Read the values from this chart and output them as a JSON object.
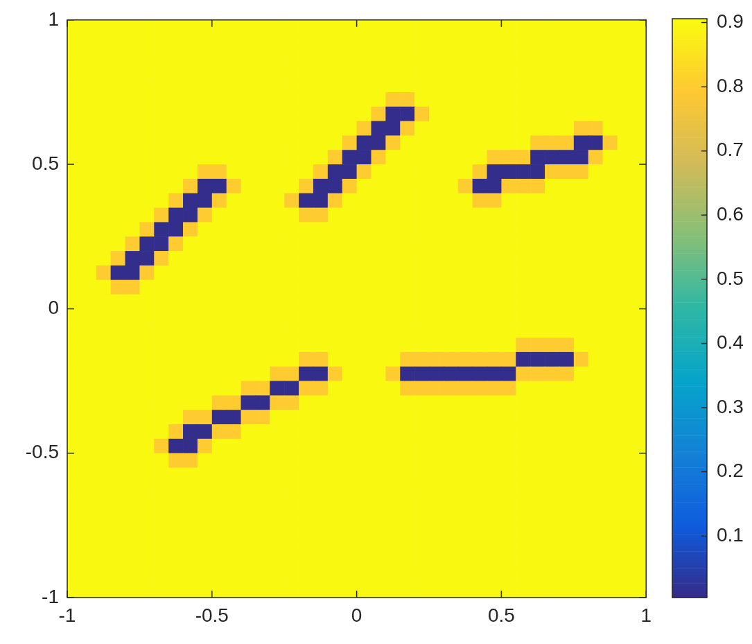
{
  "chart_data": {
    "type": "heatmap",
    "xlim": [
      -1,
      1
    ],
    "ylim": [
      -1,
      1
    ],
    "xticks": [
      -1,
      -0.5,
      0,
      0.5,
      1
    ],
    "yticks": [
      -1,
      -0.5,
      0,
      0.5,
      1
    ],
    "clim": [
      0.004,
      0.906
    ],
    "cticks": [
      0.1,
      0.2,
      0.3,
      0.4,
      0.5,
      0.6,
      0.7,
      0.8,
      0.9
    ],
    "grid": false,
    "cells": [
      [
        0.9,
        0.9,
        0.9,
        0.9,
        0.9,
        0.9,
        0.9,
        0.9,
        0.9,
        0.9,
        0.9,
        0.9,
        0.9,
        0.9,
        0.9,
        0.9,
        0.9,
        0.9,
        0.9,
        0.9,
        0.9,
        0.9,
        0.9,
        0.9,
        0.9,
        0.9,
        0.9,
        0.9,
        0.9,
        0.9,
        0.9,
        0.9,
        0.9,
        0.9,
        0.9,
        0.9,
        0.9,
        0.9,
        0.9,
        0.9
      ],
      [
        0.9,
        0.9,
        0.9,
        0.9,
        0.9,
        0.9,
        0.9,
        0.9,
        0.9,
        0.9,
        0.9,
        0.9,
        0.9,
        0.9,
        0.9,
        0.9,
        0.9,
        0.9,
        0.9,
        0.9,
        0.9,
        0.9,
        0.9,
        0.9,
        0.9,
        0.9,
        0.9,
        0.9,
        0.9,
        0.9,
        0.9,
        0.9,
        0.9,
        0.9,
        0.9,
        0.9,
        0.9,
        0.9,
        0.9,
        0.9
      ],
      [
        0.9,
        0.9,
        0.9,
        0.9,
        0.9,
        0.9,
        0.9,
        0.9,
        0.9,
        0.9,
        0.9,
        0.9,
        0.9,
        0.9,
        0.9,
        0.9,
        0.9,
        0.9,
        0.9,
        0.9,
        0.9,
        0.9,
        0.9,
        0.9,
        0.9,
        0.9,
        0.9,
        0.9,
        0.9,
        0.9,
        0.9,
        0.9,
        0.9,
        0.9,
        0.9,
        0.9,
        0.9,
        0.9,
        0.9,
        0.9
      ],
      [
        0.9,
        0.9,
        0.9,
        0.9,
        0.9,
        0.9,
        0.9,
        0.9,
        0.9,
        0.9,
        0.9,
        0.9,
        0.9,
        0.9,
        0.9,
        0.9,
        0.9,
        0.9,
        0.9,
        0.9,
        0.9,
        0.9,
        0.9,
        0.9,
        0.9,
        0.9,
        0.9,
        0.9,
        0.9,
        0.9,
        0.9,
        0.9,
        0.9,
        0.9,
        0.9,
        0.9,
        0.9,
        0.9,
        0.9,
        0.9
      ],
      [
        0.9,
        0.9,
        0.9,
        0.9,
        0.9,
        0.9,
        0.9,
        0.9,
        0.9,
        0.9,
        0.9,
        0.9,
        0.9,
        0.9,
        0.9,
        0.9,
        0.9,
        0.9,
        0.9,
        0.9,
        0.9,
        0.9,
        0.9,
        0.9,
        0.9,
        0.9,
        0.9,
        0.9,
        0.9,
        0.9,
        0.9,
        0.9,
        0.9,
        0.9,
        0.9,
        0.9,
        0.9,
        0.9,
        0.9,
        0.9
      ],
      [
        0.9,
        0.9,
        0.9,
        0.9,
        0.9,
        0.9,
        0.9,
        0.9,
        0.9,
        0.9,
        0.9,
        0.9,
        0.9,
        0.9,
        0.9,
        0.9,
        0.9,
        0.9,
        0.9,
        0.9,
        0.9,
        0.9,
        0.8,
        0.8,
        0.9,
        0.9,
        0.9,
        0.9,
        0.9,
        0.9,
        0.9,
        0.9,
        0.9,
        0.9,
        0.9,
        0.9,
        0.9,
        0.9,
        0.9,
        0.9
      ],
      [
        0.9,
        0.9,
        0.9,
        0.9,
        0.9,
        0.9,
        0.9,
        0.9,
        0.9,
        0.9,
        0.9,
        0.9,
        0.9,
        0.9,
        0.9,
        0.9,
        0.9,
        0.9,
        0.9,
        0.9,
        0.9,
        0.8,
        0.01,
        0.01,
        0.8,
        0.9,
        0.9,
        0.9,
        0.9,
        0.9,
        0.9,
        0.9,
        0.9,
        0.9,
        0.9,
        0.9,
        0.9,
        0.9,
        0.9,
        0.9
      ],
      [
        0.9,
        0.9,
        0.9,
        0.9,
        0.9,
        0.9,
        0.9,
        0.9,
        0.9,
        0.9,
        0.9,
        0.9,
        0.9,
        0.9,
        0.9,
        0.9,
        0.9,
        0.9,
        0.9,
        0.9,
        0.8,
        0.01,
        0.01,
        0.8,
        0.9,
        0.9,
        0.9,
        0.9,
        0.9,
        0.9,
        0.9,
        0.9,
        0.9,
        0.9,
        0.9,
        0.8,
        0.8,
        0.9,
        0.9,
        0.9
      ],
      [
        0.9,
        0.9,
        0.9,
        0.9,
        0.9,
        0.9,
        0.9,
        0.9,
        0.9,
        0.9,
        0.9,
        0.9,
        0.9,
        0.9,
        0.9,
        0.9,
        0.9,
        0.9,
        0.9,
        0.8,
        0.01,
        0.01,
        0.8,
        0.9,
        0.9,
        0.9,
        0.9,
        0.9,
        0.9,
        0.9,
        0.9,
        0.9,
        0.8,
        0.8,
        0.8,
        0.01,
        0.01,
        0.8,
        0.9,
        0.9
      ],
      [
        0.9,
        0.9,
        0.9,
        0.9,
        0.9,
        0.9,
        0.9,
        0.9,
        0.9,
        0.9,
        0.9,
        0.9,
        0.9,
        0.9,
        0.9,
        0.9,
        0.9,
        0.9,
        0.8,
        0.01,
        0.01,
        0.8,
        0.9,
        0.9,
        0.9,
        0.9,
        0.9,
        0.9,
        0.9,
        0.8,
        0.8,
        0.8,
        0.01,
        0.01,
        0.01,
        0.01,
        0.8,
        0.9,
        0.9,
        0.9
      ],
      [
        0.9,
        0.9,
        0.9,
        0.9,
        0.9,
        0.9,
        0.9,
        0.9,
        0.9,
        0.8,
        0.8,
        0.9,
        0.9,
        0.9,
        0.9,
        0.9,
        0.9,
        0.8,
        0.01,
        0.01,
        0.8,
        0.9,
        0.9,
        0.9,
        0.9,
        0.9,
        0.9,
        0.9,
        0.8,
        0.01,
        0.01,
        0.01,
        0.01,
        0.8,
        0.8,
        0.8,
        0.9,
        0.9,
        0.9,
        0.9
      ],
      [
        0.9,
        0.9,
        0.9,
        0.9,
        0.9,
        0.9,
        0.9,
        0.9,
        0.8,
        0.01,
        0.01,
        0.8,
        0.9,
        0.9,
        0.9,
        0.9,
        0.8,
        0.01,
        0.01,
        0.8,
        0.9,
        0.9,
        0.9,
        0.9,
        0.9,
        0.9,
        0.9,
        0.8,
        0.01,
        0.01,
        0.8,
        0.8,
        0.8,
        0.9,
        0.9,
        0.9,
        0.9,
        0.9,
        0.9,
        0.9
      ],
      [
        0.9,
        0.9,
        0.9,
        0.9,
        0.9,
        0.9,
        0.9,
        0.8,
        0.01,
        0.01,
        0.8,
        0.9,
        0.9,
        0.9,
        0.9,
        0.8,
        0.01,
        0.01,
        0.8,
        0.9,
        0.9,
        0.9,
        0.9,
        0.9,
        0.9,
        0.9,
        0.9,
        0.9,
        0.8,
        0.8,
        0.9,
        0.9,
        0.9,
        0.9,
        0.9,
        0.9,
        0.9,
        0.9,
        0.9,
        0.9
      ],
      [
        0.9,
        0.9,
        0.9,
        0.9,
        0.9,
        0.9,
        0.8,
        0.01,
        0.01,
        0.8,
        0.9,
        0.9,
        0.9,
        0.9,
        0.9,
        0.9,
        0.8,
        0.8,
        0.9,
        0.9,
        0.9,
        0.9,
        0.9,
        0.9,
        0.9,
        0.9,
        0.9,
        0.9,
        0.9,
        0.9,
        0.9,
        0.9,
        0.9,
        0.9,
        0.9,
        0.9,
        0.9,
        0.9,
        0.9,
        0.9
      ],
      [
        0.9,
        0.9,
        0.9,
        0.9,
        0.9,
        0.8,
        0.01,
        0.01,
        0.8,
        0.9,
        0.9,
        0.9,
        0.9,
        0.9,
        0.9,
        0.9,
        0.9,
        0.9,
        0.9,
        0.9,
        0.9,
        0.9,
        0.9,
        0.9,
        0.9,
        0.9,
        0.9,
        0.9,
        0.9,
        0.9,
        0.9,
        0.9,
        0.9,
        0.9,
        0.9,
        0.9,
        0.9,
        0.9,
        0.9,
        0.9
      ],
      [
        0.9,
        0.9,
        0.9,
        0.9,
        0.8,
        0.01,
        0.01,
        0.8,
        0.9,
        0.9,
        0.9,
        0.9,
        0.9,
        0.9,
        0.9,
        0.9,
        0.9,
        0.9,
        0.9,
        0.9,
        0.9,
        0.9,
        0.9,
        0.9,
        0.9,
        0.9,
        0.9,
        0.9,
        0.9,
        0.9,
        0.9,
        0.9,
        0.9,
        0.9,
        0.9,
        0.9,
        0.9,
        0.9,
        0.9,
        0.9
      ],
      [
        0.9,
        0.9,
        0.9,
        0.8,
        0.01,
        0.01,
        0.8,
        0.9,
        0.9,
        0.9,
        0.9,
        0.9,
        0.9,
        0.9,
        0.9,
        0.9,
        0.9,
        0.9,
        0.9,
        0.9,
        0.9,
        0.9,
        0.9,
        0.9,
        0.9,
        0.9,
        0.9,
        0.9,
        0.9,
        0.9,
        0.9,
        0.9,
        0.9,
        0.9,
        0.9,
        0.9,
        0.9,
        0.9,
        0.9,
        0.9
      ],
      [
        0.9,
        0.9,
        0.8,
        0.01,
        0.01,
        0.8,
        0.9,
        0.9,
        0.9,
        0.9,
        0.9,
        0.9,
        0.9,
        0.9,
        0.9,
        0.9,
        0.9,
        0.9,
        0.9,
        0.9,
        0.9,
        0.9,
        0.9,
        0.9,
        0.9,
        0.9,
        0.9,
        0.9,
        0.9,
        0.9,
        0.9,
        0.9,
        0.9,
        0.9,
        0.9,
        0.9,
        0.9,
        0.9,
        0.9,
        0.9
      ],
      [
        0.9,
        0.9,
        0.9,
        0.8,
        0.8,
        0.9,
        0.9,
        0.9,
        0.9,
        0.9,
        0.9,
        0.9,
        0.9,
        0.9,
        0.9,
        0.9,
        0.9,
        0.9,
        0.9,
        0.9,
        0.9,
        0.9,
        0.9,
        0.9,
        0.9,
        0.9,
        0.9,
        0.9,
        0.9,
        0.9,
        0.9,
        0.9,
        0.9,
        0.9,
        0.9,
        0.9,
        0.9,
        0.9,
        0.9,
        0.9
      ],
      [
        0.9,
        0.9,
        0.9,
        0.9,
        0.9,
        0.9,
        0.9,
        0.9,
        0.9,
        0.9,
        0.9,
        0.9,
        0.9,
        0.9,
        0.9,
        0.9,
        0.9,
        0.9,
        0.9,
        0.9,
        0.9,
        0.9,
        0.9,
        0.9,
        0.9,
        0.9,
        0.9,
        0.9,
        0.9,
        0.9,
        0.9,
        0.9,
        0.9,
        0.9,
        0.9,
        0.9,
        0.9,
        0.9,
        0.9,
        0.9
      ],
      [
        0.9,
        0.9,
        0.9,
        0.9,
        0.9,
        0.9,
        0.9,
        0.9,
        0.9,
        0.9,
        0.9,
        0.9,
        0.9,
        0.9,
        0.9,
        0.9,
        0.9,
        0.9,
        0.9,
        0.9,
        0.9,
        0.9,
        0.9,
        0.9,
        0.9,
        0.9,
        0.9,
        0.9,
        0.9,
        0.9,
        0.9,
        0.9,
        0.9,
        0.9,
        0.9,
        0.9,
        0.9,
        0.9,
        0.9,
        0.9
      ],
      [
        0.9,
        0.9,
        0.9,
        0.9,
        0.9,
        0.9,
        0.9,
        0.9,
        0.9,
        0.9,
        0.9,
        0.9,
        0.9,
        0.9,
        0.9,
        0.9,
        0.9,
        0.9,
        0.9,
        0.9,
        0.9,
        0.9,
        0.9,
        0.9,
        0.9,
        0.9,
        0.9,
        0.9,
        0.9,
        0.9,
        0.9,
        0.9,
        0.9,
        0.9,
        0.9,
        0.9,
        0.9,
        0.9,
        0.9,
        0.9
      ],
      [
        0.9,
        0.9,
        0.9,
        0.9,
        0.9,
        0.9,
        0.9,
        0.9,
        0.9,
        0.9,
        0.9,
        0.9,
        0.9,
        0.9,
        0.9,
        0.9,
        0.9,
        0.9,
        0.9,
        0.9,
        0.9,
        0.9,
        0.9,
        0.9,
        0.9,
        0.9,
        0.9,
        0.9,
        0.9,
        0.9,
        0.9,
        0.8,
        0.8,
        0.8,
        0.8,
        0.9,
        0.9,
        0.9,
        0.9,
        0.9
      ],
      [
        0.9,
        0.9,
        0.9,
        0.9,
        0.9,
        0.9,
        0.9,
        0.9,
        0.9,
        0.9,
        0.9,
        0.9,
        0.9,
        0.9,
        0.9,
        0.9,
        0.8,
        0.8,
        0.9,
        0.9,
        0.9,
        0.9,
        0.9,
        0.8,
        0.8,
        0.8,
        0.8,
        0.8,
        0.8,
        0.8,
        0.8,
        0.01,
        0.01,
        0.01,
        0.01,
        0.8,
        0.9,
        0.9,
        0.9,
        0.9
      ],
      [
        0.9,
        0.9,
        0.9,
        0.9,
        0.9,
        0.9,
        0.9,
        0.9,
        0.9,
        0.9,
        0.9,
        0.9,
        0.9,
        0.9,
        0.8,
        0.8,
        0.01,
        0.01,
        0.8,
        0.9,
        0.9,
        0.9,
        0.8,
        0.01,
        0.01,
        0.01,
        0.01,
        0.01,
        0.01,
        0.01,
        0.01,
        0.8,
        0.8,
        0.8,
        0.8,
        0.9,
        0.9,
        0.9,
        0.9,
        0.9
      ],
      [
        0.9,
        0.9,
        0.9,
        0.9,
        0.9,
        0.9,
        0.9,
        0.9,
        0.9,
        0.9,
        0.9,
        0.9,
        0.8,
        0.8,
        0.01,
        0.01,
        0.8,
        0.8,
        0.9,
        0.9,
        0.9,
        0.9,
        0.9,
        0.8,
        0.8,
        0.8,
        0.8,
        0.8,
        0.8,
        0.8,
        0.8,
        0.9,
        0.9,
        0.9,
        0.9,
        0.9,
        0.9,
        0.9,
        0.9,
        0.9
      ],
      [
        0.9,
        0.9,
        0.9,
        0.9,
        0.9,
        0.9,
        0.9,
        0.9,
        0.9,
        0.9,
        0.8,
        0.8,
        0.01,
        0.01,
        0.8,
        0.8,
        0.9,
        0.9,
        0.9,
        0.9,
        0.9,
        0.9,
        0.9,
        0.9,
        0.9,
        0.9,
        0.9,
        0.9,
        0.9,
        0.9,
        0.9,
        0.9,
        0.9,
        0.9,
        0.9,
        0.9,
        0.9,
        0.9,
        0.9,
        0.9
      ],
      [
        0.9,
        0.9,
        0.9,
        0.9,
        0.9,
        0.9,
        0.9,
        0.9,
        0.8,
        0.8,
        0.01,
        0.01,
        0.8,
        0.8,
        0.9,
        0.9,
        0.9,
        0.9,
        0.9,
        0.9,
        0.9,
        0.9,
        0.9,
        0.9,
        0.9,
        0.9,
        0.9,
        0.9,
        0.9,
        0.9,
        0.9,
        0.9,
        0.9,
        0.9,
        0.9,
        0.9,
        0.9,
        0.9,
        0.9,
        0.9
      ],
      [
        0.9,
        0.9,
        0.9,
        0.9,
        0.9,
        0.9,
        0.9,
        0.8,
        0.01,
        0.01,
        0.8,
        0.8,
        0.9,
        0.9,
        0.9,
        0.9,
        0.9,
        0.9,
        0.9,
        0.9,
        0.9,
        0.9,
        0.9,
        0.9,
        0.9,
        0.9,
        0.9,
        0.9,
        0.9,
        0.9,
        0.9,
        0.9,
        0.9,
        0.9,
        0.9,
        0.9,
        0.9,
        0.9,
        0.9,
        0.9
      ],
      [
        0.9,
        0.9,
        0.9,
        0.9,
        0.9,
        0.9,
        0.8,
        0.01,
        0.01,
        0.8,
        0.9,
        0.9,
        0.9,
        0.9,
        0.9,
        0.9,
        0.9,
        0.9,
        0.9,
        0.9,
        0.9,
        0.9,
        0.9,
        0.9,
        0.9,
        0.9,
        0.9,
        0.9,
        0.9,
        0.9,
        0.9,
        0.9,
        0.9,
        0.9,
        0.9,
        0.9,
        0.9,
        0.9,
        0.9,
        0.9
      ],
      [
        0.9,
        0.9,
        0.9,
        0.9,
        0.9,
        0.9,
        0.9,
        0.8,
        0.8,
        0.9,
        0.9,
        0.9,
        0.9,
        0.9,
        0.9,
        0.9,
        0.9,
        0.9,
        0.9,
        0.9,
        0.9,
        0.9,
        0.9,
        0.9,
        0.9,
        0.9,
        0.9,
        0.9,
        0.9,
        0.9,
        0.9,
        0.9,
        0.9,
        0.9,
        0.9,
        0.9,
        0.9,
        0.9,
        0.9,
        0.9
      ],
      [
        0.9,
        0.9,
        0.9,
        0.9,
        0.9,
        0.9,
        0.9,
        0.9,
        0.9,
        0.9,
        0.9,
        0.9,
        0.9,
        0.9,
        0.9,
        0.9,
        0.9,
        0.9,
        0.9,
        0.9,
        0.9,
        0.9,
        0.9,
        0.9,
        0.9,
        0.9,
        0.9,
        0.9,
        0.9,
        0.9,
        0.9,
        0.9,
        0.9,
        0.9,
        0.9,
        0.9,
        0.9,
        0.9,
        0.9,
        0.9
      ],
      [
        0.9,
        0.9,
        0.9,
        0.9,
        0.9,
        0.9,
        0.9,
        0.9,
        0.9,
        0.9,
        0.9,
        0.9,
        0.9,
        0.9,
        0.9,
        0.9,
        0.9,
        0.9,
        0.9,
        0.9,
        0.9,
        0.9,
        0.9,
        0.9,
        0.9,
        0.9,
        0.9,
        0.9,
        0.9,
        0.9,
        0.9,
        0.9,
        0.9,
        0.9,
        0.9,
        0.9,
        0.9,
        0.9,
        0.9,
        0.9
      ],
      [
        0.9,
        0.9,
        0.9,
        0.9,
        0.9,
        0.9,
        0.9,
        0.9,
        0.9,
        0.9,
        0.9,
        0.9,
        0.9,
        0.9,
        0.9,
        0.9,
        0.9,
        0.9,
        0.9,
        0.9,
        0.9,
        0.9,
        0.9,
        0.9,
        0.9,
        0.9,
        0.9,
        0.9,
        0.9,
        0.9,
        0.9,
        0.9,
        0.9,
        0.9,
        0.9,
        0.9,
        0.9,
        0.9,
        0.9,
        0.9
      ],
      [
        0.9,
        0.9,
        0.9,
        0.9,
        0.9,
        0.9,
        0.9,
        0.9,
        0.9,
        0.9,
        0.9,
        0.9,
        0.9,
        0.9,
        0.9,
        0.9,
        0.9,
        0.9,
        0.9,
        0.9,
        0.9,
        0.9,
        0.9,
        0.9,
        0.9,
        0.9,
        0.9,
        0.9,
        0.9,
        0.9,
        0.9,
        0.9,
        0.9,
        0.9,
        0.9,
        0.9,
        0.9,
        0.9,
        0.9,
        0.9
      ],
      [
        0.9,
        0.9,
        0.9,
        0.9,
        0.9,
        0.9,
        0.9,
        0.9,
        0.9,
        0.9,
        0.9,
        0.9,
        0.9,
        0.9,
        0.9,
        0.9,
        0.9,
        0.9,
        0.9,
        0.9,
        0.9,
        0.9,
        0.9,
        0.9,
        0.9,
        0.9,
        0.9,
        0.9,
        0.9,
        0.9,
        0.9,
        0.9,
        0.9,
        0.9,
        0.9,
        0.9,
        0.9,
        0.9,
        0.9,
        0.9
      ],
      [
        0.9,
        0.9,
        0.9,
        0.9,
        0.9,
        0.9,
        0.9,
        0.9,
        0.9,
        0.9,
        0.9,
        0.9,
        0.9,
        0.9,
        0.9,
        0.9,
        0.9,
        0.9,
        0.9,
        0.9,
        0.9,
        0.9,
        0.9,
        0.9,
        0.9,
        0.9,
        0.9,
        0.9,
        0.9,
        0.9,
        0.9,
        0.9,
        0.9,
        0.9,
        0.9,
        0.9,
        0.9,
        0.9,
        0.9,
        0.9
      ],
      [
        0.9,
        0.9,
        0.9,
        0.9,
        0.9,
        0.9,
        0.9,
        0.9,
        0.9,
        0.9,
        0.9,
        0.9,
        0.9,
        0.9,
        0.9,
        0.9,
        0.9,
        0.9,
        0.9,
        0.9,
        0.9,
        0.9,
        0.9,
        0.9,
        0.9,
        0.9,
        0.9,
        0.9,
        0.9,
        0.9,
        0.9,
        0.9,
        0.9,
        0.9,
        0.9,
        0.9,
        0.9,
        0.9,
        0.9,
        0.9
      ],
      [
        0.9,
        0.9,
        0.9,
        0.9,
        0.9,
        0.9,
        0.9,
        0.9,
        0.9,
        0.9,
        0.9,
        0.9,
        0.9,
        0.9,
        0.9,
        0.9,
        0.9,
        0.9,
        0.9,
        0.9,
        0.9,
        0.9,
        0.9,
        0.9,
        0.9,
        0.9,
        0.9,
        0.9,
        0.9,
        0.9,
        0.9,
        0.9,
        0.9,
        0.9,
        0.9,
        0.9,
        0.9,
        0.9,
        0.9,
        0.9
      ],
      [
        0.9,
        0.9,
        0.9,
        0.9,
        0.9,
        0.9,
        0.9,
        0.9,
        0.9,
        0.9,
        0.9,
        0.9,
        0.9,
        0.9,
        0.9,
        0.9,
        0.9,
        0.9,
        0.9,
        0.9,
        0.9,
        0.9,
        0.9,
        0.9,
        0.9,
        0.9,
        0.9,
        0.9,
        0.9,
        0.9,
        0.9,
        0.9,
        0.9,
        0.9,
        0.9,
        0.9,
        0.9,
        0.9,
        0.9,
        0.9
      ]
    ]
  }
}
